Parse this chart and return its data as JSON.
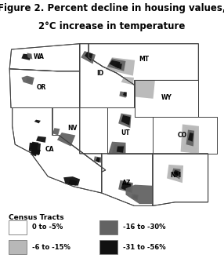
{
  "title_line1": "Figure 2. Percent decline in housing values,",
  "title_line2": "2°C increase in temperature",
  "title_fontsize": 8.5,
  "legend_title": "Census Tracts",
  "legend_items": [
    {
      "label": "0 to -5%",
      "color": "#ffffff",
      "edgecolor": "#777777"
    },
    {
      "label": "-6 to -15%",
      "color": "#b8b8b8",
      "edgecolor": "#777777"
    },
    {
      "label": "-16 to -30%",
      "color": "#636363",
      "edgecolor": "#777777"
    },
    {
      "label": "-31 to -56%",
      "color": "#111111",
      "edgecolor": "#777777"
    }
  ],
  "state_border_color": "#444444",
  "map_bg": "#ffffff",
  "bg_color": "#ffffff",
  "label_fontsize": 5.5,
  "border_lw": 0.7
}
